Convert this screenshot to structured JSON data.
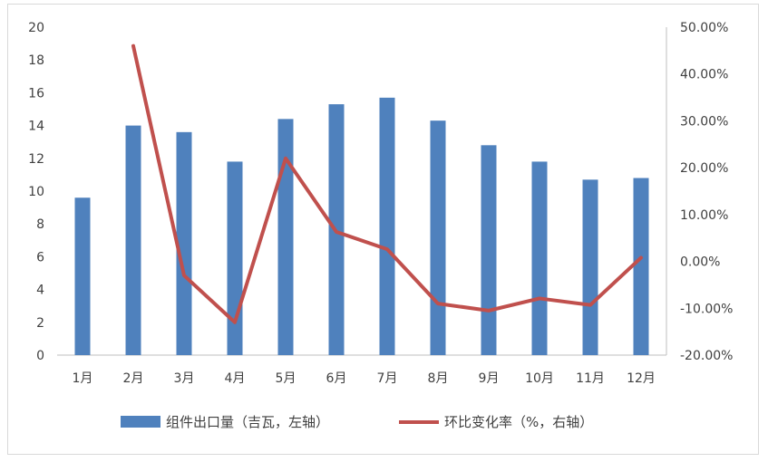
{
  "chart_data": {
    "type": "bar",
    "categories": [
      "1月",
      "2月",
      "3月",
      "4月",
      "5月",
      "6月",
      "7月",
      "8月",
      "9月",
      "10月",
      "11月",
      "12月"
    ],
    "series": [
      {
        "name": "组件出口量（吉瓦，左轴）",
        "type": "bar",
        "axis": "left",
        "color": "#4f81bd",
        "values": [
          9.6,
          14.0,
          13.6,
          11.8,
          14.4,
          15.3,
          15.7,
          14.3,
          12.8,
          11.8,
          10.7,
          10.8
        ]
      },
      {
        "name": "环比变化率（%，右轴）",
        "type": "line",
        "axis": "right",
        "color": "#c0504d",
        "values": [
          null,
          46.0,
          -3.0,
          -13.0,
          22.0,
          6.3,
          2.6,
          -9.0,
          -10.5,
          -7.9,
          -9.3,
          0.8
        ]
      }
    ],
    "y_left": {
      "range": [
        0,
        20
      ],
      "ticks": [
        "0",
        "2",
        "4",
        "6",
        "8",
        "10",
        "12",
        "14",
        "16",
        "18",
        "20"
      ]
    },
    "y_right": {
      "range": [
        -20,
        50
      ],
      "ticks": [
        "-20.00%",
        "-10.00%",
        "0.00%",
        "10.00%",
        "20.00%",
        "30.00%",
        "40.00%",
        "50.00%"
      ]
    },
    "grid": false,
    "legend_position": "bottom"
  }
}
